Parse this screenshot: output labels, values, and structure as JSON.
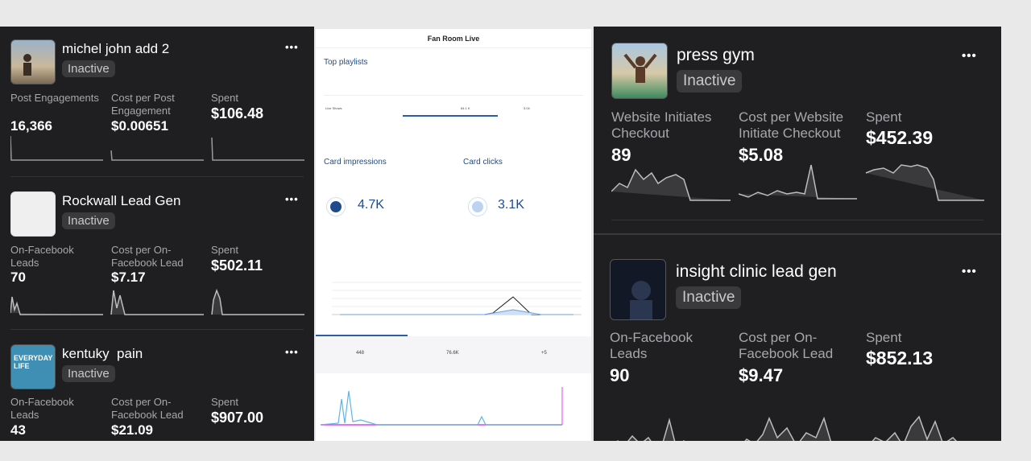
{
  "left_cards": [
    {
      "title": "michel john add 2",
      "status": "Inactive",
      "metrics": [
        {
          "label": "Post Engagements",
          "value": "16,366"
        },
        {
          "label": "Cost per Post Engagement",
          "value": "$0.00651"
        },
        {
          "label": "Spent",
          "value": "$106.48"
        }
      ]
    },
    {
      "title": "Rockwall Lead Gen",
      "status": "Inactive",
      "metrics": [
        {
          "label": "On-Facebook Leads",
          "value": "70"
        },
        {
          "label": "Cost per On-Facebook Lead",
          "value": "$7.17"
        },
        {
          "label": "Spent",
          "value": "$502.11"
        }
      ]
    },
    {
      "title": "kentuky  pain",
      "status": "Inactive",
      "thumb_text": "EVERYDAY LIFE",
      "metrics": [
        {
          "label": "On-Facebook Leads",
          "value": "43"
        },
        {
          "label": "Cost per On-Facebook Lead",
          "value": "$21.09"
        },
        {
          "label": "Spent",
          "value": "$907.00"
        }
      ]
    }
  ],
  "right_cards": [
    {
      "title": "press gym",
      "status": "Inactive",
      "metrics": [
        {
          "label": "Website Initiates Checkout",
          "value": "89"
        },
        {
          "label": "Cost per Website Initiate Checkout",
          "value": "$5.08"
        },
        {
          "label": "Spent",
          "value": "$452.39"
        }
      ]
    },
    {
      "title": "insight clinic lead gen",
      "status": "Inactive",
      "metrics": [
        {
          "label": "On-Facebook Leads",
          "value": "90"
        },
        {
          "label": "Cost per On-Facebook Lead",
          "value": "$9.47"
        },
        {
          "label": "Spent",
          "value": "$852.13"
        }
      ]
    }
  ],
  "more_label": "•••",
  "fan_room": {
    "header": "Fan Room Live",
    "top_playlists": "Top playlists",
    "table_row_label": "Live Shows",
    "table_row_views": "84.1 K",
    "table_row_watch": "3.04",
    "card_impressions_title": "Card impressions",
    "card_impressions_value": "4.7K",
    "card_clicks_title": "Card clicks",
    "card_clicks_value": "3.1K",
    "stat1": "448",
    "stat2": "76.6K",
    "stat3": "+5"
  },
  "colors": {
    "panel_bg": "#1f1f21",
    "badge_bg": "#3a3a3d",
    "accent_blue": "#1f4b8e",
    "spark_pink": "#d946ef"
  }
}
